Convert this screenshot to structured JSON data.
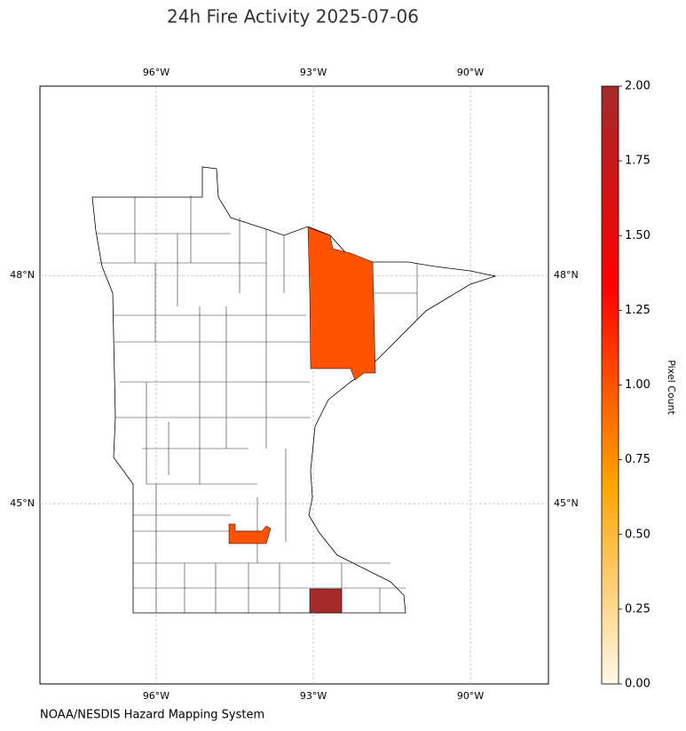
{
  "map": {
    "title": "24h Fire Activity 2025-07-06",
    "source": "NOAA/NESDIS Hazard Mapping System",
    "xlim": [
      -98.22,
      -88.51
    ],
    "ylim": [
      42.63,
      50.49
    ],
    "xticks": [
      {
        "value": -96,
        "label": "96°W"
      },
      {
        "value": -93,
        "label": "93°W"
      },
      {
        "value": -90,
        "label": "90°W"
      }
    ],
    "yticks": [
      {
        "value": 48,
        "label": "48°N"
      },
      {
        "value": 45,
        "label": "45°N"
      }
    ],
    "grid": true,
    "fire_areas": [
      {
        "value": 1
      },
      {
        "value": 1
      },
      {
        "value": 2
      }
    ],
    "colorbar": {
      "label": "Pixel Count",
      "lim": [
        0,
        2
      ],
      "colormap": [
        "#fff8e7",
        "#ffa500",
        "#ff0000",
        "#a52a2a"
      ],
      "ticks": [
        {
          "value": 0,
          "label": "0.00"
        },
        {
          "value": 0.25,
          "label": "0.25"
        },
        {
          "value": 0.5,
          "label": "0.50"
        },
        {
          "value": 0.75,
          "label": "0.75"
        },
        {
          "value": 1,
          "label": "1.00"
        },
        {
          "value": 1.25,
          "label": "1.25"
        },
        {
          "value": 1.5,
          "label": "1.50"
        },
        {
          "value": 1.75,
          "label": "1.75"
        },
        {
          "value": 2,
          "label": "2.00"
        }
      ]
    }
  }
}
